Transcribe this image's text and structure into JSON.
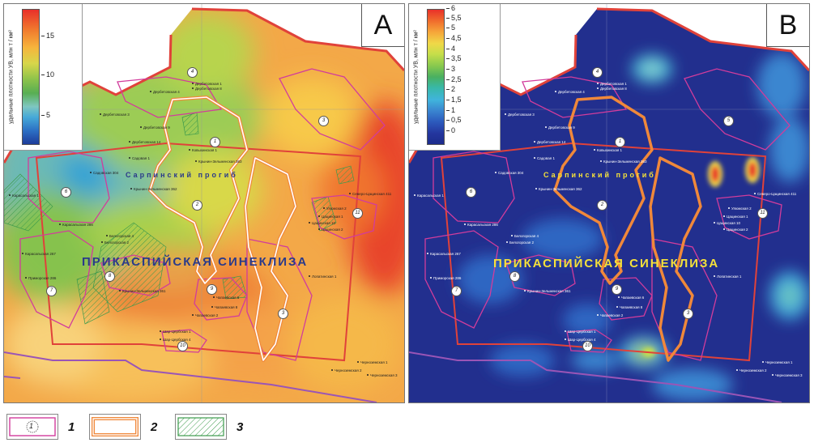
{
  "panels": [
    {
      "letter": "A",
      "legend": {
        "axis_label": "удельные плотности УВ, млн т / км²",
        "ticks": [
          "15",
          "10",
          "5"
        ]
      },
      "region_labels": {
        "trough": "Сарпинский прогиб",
        "syneclise": "ПРИКАСПИЙСКАЯ СИНЕКЛИЗА"
      }
    },
    {
      "letter": "B",
      "legend": {
        "axis_label": "удельные плотности УВ, млн т / км²",
        "ticks": [
          "6",
          "5,5",
          "5",
          "4,5",
          "4",
          "3,5",
          "3",
          "2,5",
          "2",
          "1,5",
          "1",
          "0,5",
          "0"
        ]
      },
      "region_labels": {
        "trough": "Сарпинский прогиб",
        "syneclise": "ПРИКАСПИЙСКАЯ СИНЕКЛИЗА"
      }
    }
  ],
  "zones": [
    "1",
    "2",
    "3",
    "4",
    "5",
    "6",
    "7",
    "8",
    "9",
    "10",
    "11"
  ],
  "wells": [
    "Дербетовская 1",
    "Дербетовская 4",
    "Дербетовская 8",
    "Дербетовская 3",
    "Дербетовская 9",
    "Дербетовская 14",
    "Ковыхинская 1",
    "Садовая 1",
    "Садовская 304",
    "Крынин-Зельменская 363",
    "Крынин-Зельменская 362",
    "Карасальская 1",
    "Карасальская 286",
    "Карасальская 267",
    "Приморская 286",
    "Белогорская 4",
    "Белогорская 2",
    "Лопатинская 1",
    "Крынин-Зельменская 361",
    "Чапаевская 8",
    "Чапаевская 2",
    "Чапаевская 6",
    "Шар-Цербская 1",
    "Шар-Цербская 4",
    "Цацинская 10",
    "Цацинская 1",
    "Цацинская 2",
    "Северо-Цацинская 411",
    "Улюмская 2",
    "Черноземская 1",
    "Черноземская 2",
    "Черноземская 3"
  ],
  "legend_items": [
    {
      "number": "1",
      "symbol": "zone-outline"
    },
    {
      "number": "2",
      "symbol": "double-outline"
    },
    {
      "number": "3",
      "symbol": "hatched-area"
    }
  ],
  "colors": {
    "outer_boundary": "#e0423a",
    "zone_outline": "#d23c9c",
    "double_outline_a": "#ffffff",
    "double_outline_b": "#f0883a",
    "hatch": "#3d9b4c",
    "purple_boundary": "#9a55b6",
    "title_color_a": "#2a3a8a",
    "title_color_b": "#f5e13a"
  }
}
